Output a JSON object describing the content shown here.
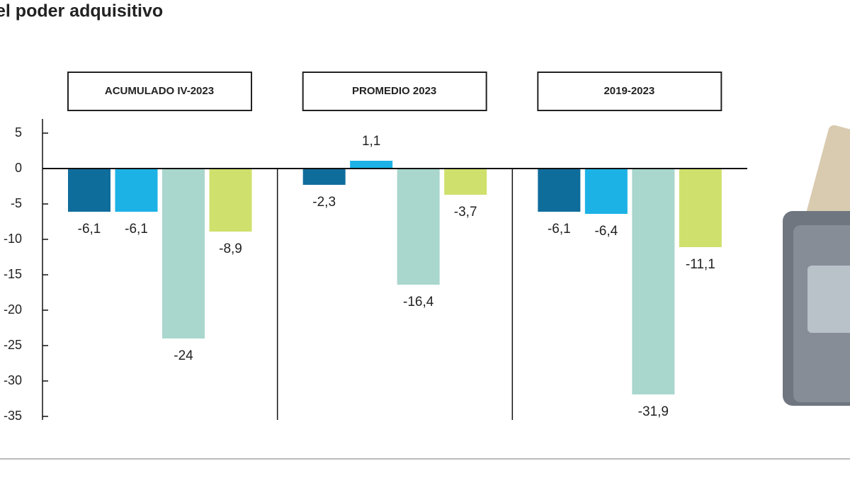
{
  "chart_data": {
    "type": "bar",
    "title": "el poder adquisitivo",
    "categories": [
      "ACUMULADO IV-2023",
      "PROMEDIO 2023",
      "2019-2023"
    ],
    "series": [
      {
        "color": "#0f6d9c",
        "values": [
          -6.1,
          -2.3,
          -6.1
        ],
        "value_labels": [
          "-6,1",
          "-2,3",
          "-6,1"
        ]
      },
      {
        "color": "#1db2e6",
        "values": [
          -6.1,
          1.1,
          -6.4
        ],
        "value_labels": [
          "-6,1",
          "1,1",
          "-6,4"
        ]
      },
      {
        "color": "#a9d6cd",
        "values": [
          -24,
          -16.4,
          -31.9
        ],
        "value_labels": [
          "-24",
          "-16,4",
          "-31,9"
        ]
      },
      {
        "color": "#d0e06c",
        "values": [
          -8.9,
          -3.7,
          -11.1
        ],
        "value_labels": [
          "-8,9",
          "-3,7",
          "-11,1"
        ]
      }
    ],
    "ylim": [
      -35.5,
      7
    ],
    "yticks": [
      5,
      0,
      -5,
      -10,
      -15,
      -20,
      -25,
      -30,
      -35
    ]
  }
}
